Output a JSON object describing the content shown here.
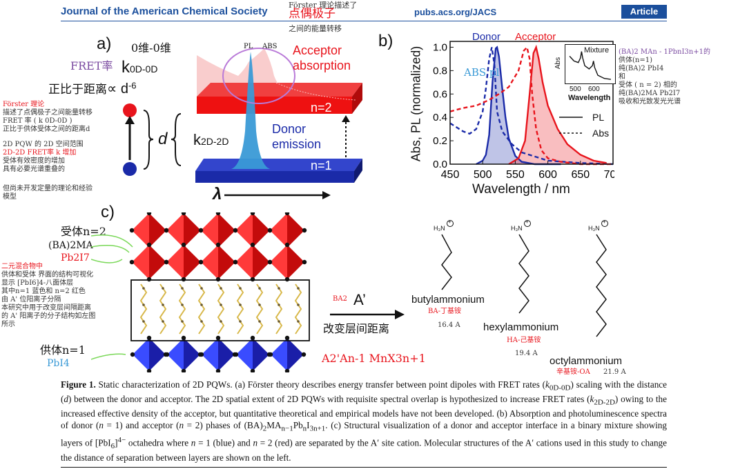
{
  "header": {
    "journal": "Journal of the American Chemical Society",
    "url": "pubs.acs.org/JACS",
    "article_badge": "Article"
  },
  "overlay_notes": {
    "header_note_small": "Förster 理论描述了",
    "header_note_red": "点偶极子",
    "header_note_small2": "之间的能量转移",
    "dim_note": "0维-0维",
    "fret_rate_cn": "FRET率",
    "prop_note": "正比于距离",
    "left_block": [
      "Förster 理论",
      "描述了点偶极子之间能量转移",
      "FRET 率 ( k 0D-0D )",
      "正比于供体受体之间的距离d",
      "",
      "2D PQW 的 2D 空间范围",
      " 2D-2D FRET率 k 增加",
      "受体有效密度的增加",
      "具有必要光谱重叠的",
      "",
      "但尚未开发定量的理论和经验",
      "模型"
    ],
    "right_block": [
      "(BA)2 MAn - 1PbnI3n+1的",
      "供体(n=1)",
      "纯(BA)2 PbI4",
      "和",
      "受体 ( n = 2) 相的",
      "纯(BA)2MA Pb2I7",
      "吸收和光致发光光谱"
    ],
    "acceptor_cn": "受体n=2",
    "acceptor_formula1": "(BA)2MA",
    "acceptor_formula2": "Pb2I7",
    "mixture_block": [
      "二元混合物中",
      "供体和受体 界面的结构可视化",
      "显示 [PbI6]4-八面体层",
      "其中n=1 蓝色和 n=2 红色",
      "由 A' 位阳离子分隔",
      "本研究中用于改变层间隔距离",
      "的 A' 阳离子的分子结构如左图",
      "所示"
    ],
    "donor_cn": "供体n=1",
    "donor_formula": "PbI4",
    "ba2_note": "BA2",
    "change_note": "改变层间距离",
    "general_formula": "A2'An-1 MnX3n+1",
    "ba_cn": "BA-丁基铵",
    "ba_len": "16.4 A",
    "ha_cn": "HA-己基铵",
    "ha_len": "19.4 A",
    "oa_cn": "辛基铵-OA",
    "oa_len": "21.9 A",
    "abs_pl_note": "ABS  pl"
  },
  "panel_a": {
    "letter": "a)",
    "k0d": "k",
    "k0d_sub": "0D-0D",
    "prop_symbol": "∝ d",
    "prop_exp": "-6",
    "d_label": "d",
    "k2d": "k",
    "k2d_sub": "2D-2D",
    "pl_label": "PL",
    "abs_label": "ABS",
    "acceptor_abs": "Acceptor absorption",
    "donor_em": "Donor emission",
    "n2": "n=2",
    "n1": "n=1",
    "lambda": "λ"
  },
  "panel_b": {
    "letter": "b)",
    "donor_label": "Donor",
    "acceptor_label": "Acceptor",
    "inset_title": "Mixture",
    "inset_ylabel": "Abs",
    "inset_xlabel": "Wavelength",
    "legend_pl": "PL",
    "legend_abs": "Abs"
  },
  "chart_data": {
    "type": "line",
    "xlabel": "Wavelength / nm",
    "ylabel": "Abs, PL (normalized)",
    "xlim": [
      450,
      700
    ],
    "ylim": [
      0.0,
      1.05
    ],
    "x_ticks": [
      "450",
      "500",
      "550",
      "600",
      "650",
      "700"
    ],
    "y_ticks": [
      "0.0",
      "0.2",
      "0.4",
      "0.6",
      "0.8",
      "1.0"
    ],
    "colors": {
      "donor": "#1a2aa8",
      "acceptor": "#e8141c"
    },
    "series": [
      {
        "name": "Donor",
        "style": "solid-filled",
        "x": [
          490,
          500,
          505,
          510,
          515,
          520,
          522,
          525,
          530,
          535,
          540,
          550,
          560,
          580,
          620
        ],
        "y": [
          0.0,
          0.03,
          0.08,
          0.25,
          0.7,
          0.99,
          1.0,
          0.92,
          0.65,
          0.4,
          0.22,
          0.07,
          0.02,
          0.0,
          0.0
        ]
      },
      {
        "name": "Donor",
        "style": "dashed",
        "x": [
          450,
          470,
          480,
          490,
          500,
          505,
          510,
          514,
          518,
          522,
          530,
          545,
          560,
          600,
          650,
          700
        ],
        "y": [
          0.35,
          0.28,
          0.26,
          0.3,
          0.45,
          0.65,
          0.9,
          1.0,
          0.85,
          0.45,
          0.28,
          0.17,
          0.1,
          0.03,
          0.01,
          0.0
        ]
      },
      {
        "name": "Acceptor",
        "style": "solid-filled",
        "x": [
          540,
          555,
          565,
          572,
          578,
          582,
          586,
          592,
          600,
          615,
          630,
          650,
          670,
          690
        ],
        "y": [
          0.0,
          0.05,
          0.2,
          0.6,
          0.95,
          1.0,
          0.9,
          0.7,
          0.5,
          0.3,
          0.17,
          0.08,
          0.03,
          0.01
        ]
      },
      {
        "name": "Acceptor",
        "style": "dashed",
        "x": [
          450,
          470,
          490,
          510,
          525,
          540,
          555,
          563,
          568,
          572,
          576,
          582,
          590,
          600,
          620,
          650,
          700
        ],
        "y": [
          0.45,
          0.48,
          0.5,
          0.55,
          0.6,
          0.66,
          0.8,
          0.97,
          1.0,
          0.9,
          0.6,
          0.3,
          0.12,
          0.05,
          0.02,
          0.0,
          0.0
        ]
      }
    ],
    "inset": {
      "x_ticks": [
        "500",
        "600"
      ],
      "x": [
        460,
        480,
        500,
        510,
        515,
        520,
        530,
        550,
        565,
        570,
        575,
        590,
        620,
        650
      ],
      "y": [
        0.75,
        0.6,
        0.55,
        0.7,
        0.9,
        0.7,
        0.45,
        0.35,
        0.45,
        0.6,
        0.4,
        0.15,
        0.05,
        0.02
      ]
    }
  },
  "panel_c": {
    "letter": "c)",
    "cation_label": "A’",
    "mol1": "butylammonium",
    "mol2": "hexylammonium",
    "mol3": "octylammonium",
    "ammonium": "H₃N",
    "plus": "+"
  },
  "caption": {
    "label": "Figure 1.",
    "segments": [
      "Static characterization of 2D PQWs. (a) Förster theory describes energy transfer between point dipoles with FRET rates (",
      "k",
      "0D-0D",
      ") scaling with the distance (",
      "d",
      ") between the donor and acceptor. The 2D spatial extent of 2D PQWs with requisite spectral overlap is hypothesized to increase FRET rates (",
      "k",
      "2D-2D",
      ") owing to the increased effective density of the acceptor, but quantitative theoretical and empirical models have not been developed. (b) Absorption and photoluminescence spectra of donor (",
      "n",
      " = 1) and acceptor (",
      "n",
      " = 2) phases of (BA)",
      "2",
      "MA",
      "n−1",
      "Pb",
      "n",
      "I",
      "3n+1",
      ". (c) Structural visualization of a donor and acceptor interface in a binary mixture showing layers of [PbI",
      "6",
      "]",
      "4−",
      " octahedra where ",
      "n",
      " = 1 (blue) and ",
      "n",
      " = 2 (red) are separated by the A′ site cation. Molecular structures of the A′ cations used in this study to change the distance of separation between layers are shown on the left."
    ]
  }
}
